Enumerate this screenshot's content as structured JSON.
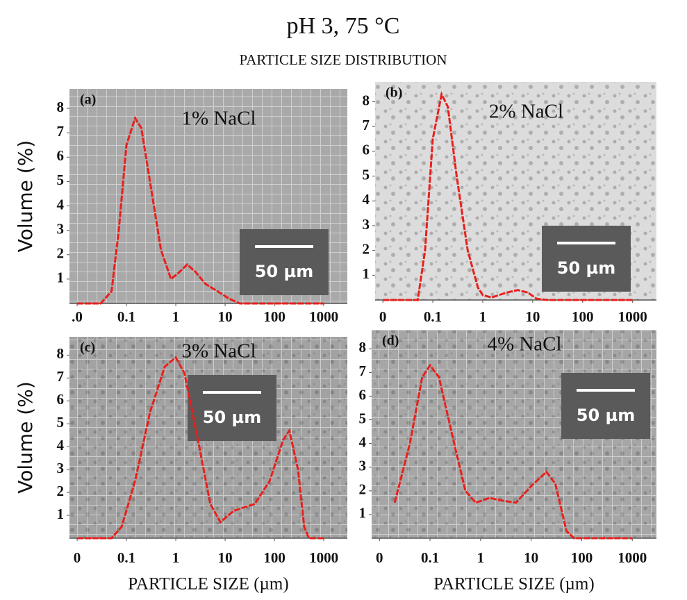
{
  "title": "pH 3, 75 °C",
  "subtitle": "PARTICLE SIZE DISTRIBUTION",
  "chart_data": [
    {
      "type": "line",
      "panel": "(a)",
      "annotation": "1% NaCl",
      "scale_bar": "50 µm",
      "ylabel": "Volume (%)",
      "log_x": true,
      "xlim": [
        0.007,
        3000
      ],
      "ylim": [
        0,
        8.8
      ],
      "xticks": [
        {
          "value": 0.01,
          "label": ".0"
        },
        0.1,
        1,
        10,
        100,
        1000
      ],
      "yticks": [
        1,
        2,
        3,
        4,
        5,
        6,
        7,
        8
      ],
      "x": [
        0.01,
        0.03,
        0.05,
        0.07,
        0.1,
        0.15,
        0.2,
        0.3,
        0.5,
        0.8,
        1.2,
        1.7,
        2.5,
        4,
        7,
        12,
        20,
        100,
        1000
      ],
      "series": [
        {
          "name": "1% NaCl",
          "color": "#e8201c",
          "values": [
            0,
            0,
            0.5,
            3,
            6.5,
            7.6,
            7.2,
            5,
            2.2,
            1.0,
            1.3,
            1.6,
            1.3,
            0.8,
            0.5,
            0.2,
            0,
            0,
            0
          ]
        }
      ]
    },
    {
      "type": "line",
      "panel": "(b)",
      "annotation": "2% NaCl",
      "scale_bar": "50 µm",
      "log_x": true,
      "xlim": [
        0.007,
        3000
      ],
      "ylim": [
        0,
        8.8
      ],
      "xticks": [
        {
          "value": 0.01,
          "label": "0"
        },
        0.1,
        1,
        10,
        100,
        1000
      ],
      "yticks": [
        1,
        2,
        3,
        4,
        5,
        6,
        7,
        8
      ],
      "x": [
        0.01,
        0.05,
        0.07,
        0.1,
        0.15,
        0.2,
        0.3,
        0.5,
        0.8,
        1,
        1.5,
        3,
        5,
        8,
        12,
        20,
        1000
      ],
      "series": [
        {
          "name": "2% NaCl",
          "color": "#e8201c",
          "values": [
            0,
            0,
            2,
            6.5,
            8.3,
            7.8,
            5,
            2,
            0.5,
            0.2,
            0.1,
            0.3,
            0.4,
            0.3,
            0.05,
            0,
            0
          ]
        }
      ]
    },
    {
      "type": "line",
      "panel": "(c)",
      "annotation": "3% NaCl",
      "scale_bar": "50 µm",
      "ylabel": "Volume (%)",
      "xlabel": "PARTICLE SIZE (µm)",
      "log_x": true,
      "xlim": [
        0.007,
        3000
      ],
      "ylim": [
        0,
        8.8
      ],
      "xticks": [
        {
          "value": 0.01,
          "label": "0"
        },
        0.1,
        1,
        10,
        100,
        1000
      ],
      "yticks": [
        1,
        2,
        3,
        4,
        5,
        6,
        7,
        8
      ],
      "x": [
        0.01,
        0.05,
        0.08,
        0.15,
        0.3,
        0.6,
        1,
        1.5,
        3,
        5,
        8,
        15,
        40,
        80,
        150,
        200,
        300,
        400,
        500,
        1000
      ],
      "series": [
        {
          "name": "3% NaCl",
          "color": "#e8201c",
          "values": [
            0,
            0,
            0.5,
            2.5,
            5.5,
            7.5,
            7.9,
            7.2,
            4,
            1.5,
            0.7,
            1.2,
            1.5,
            2.5,
            4.3,
            4.7,
            3,
            0.5,
            0,
            0
          ]
        }
      ]
    },
    {
      "type": "line",
      "panel": "(d)",
      "annotation": "4% NaCl",
      "scale_bar": "50 µm",
      "xlabel": "PARTICLE SIZE (µm)",
      "log_x": true,
      "xlim": [
        0.007,
        3000
      ],
      "ylim": [
        0,
        8.8
      ],
      "xticks": [
        {
          "value": 0.01,
          "label": "0"
        },
        0.1,
        1,
        10,
        100,
        1000
      ],
      "yticks": [
        1,
        2,
        3,
        4,
        5,
        6,
        7,
        8
      ],
      "x": [
        0.02,
        0.04,
        0.07,
        0.1,
        0.15,
        0.3,
        0.5,
        0.8,
        1.5,
        2.5,
        5,
        10,
        20,
        30,
        50,
        70,
        1000
      ],
      "series": [
        {
          "name": "4% NaCl",
          "color": "#e8201c",
          "values": [
            1.5,
            4,
            6.8,
            7.3,
            6.8,
            4,
            2,
            1.5,
            1.7,
            1.6,
            1.5,
            2.2,
            2.8,
            2.3,
            0.3,
            0,
            0
          ]
        }
      ]
    }
  ]
}
